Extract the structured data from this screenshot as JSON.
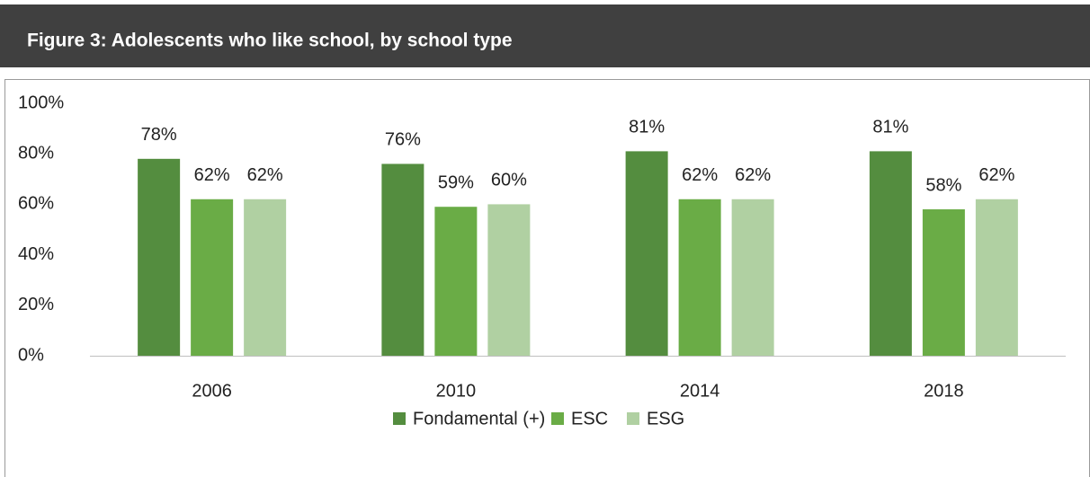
{
  "chart_data": {
    "type": "bar",
    "title": "Figure 3: Adolescents who like school, by school type",
    "categories": [
      "2006",
      "2010",
      "2014",
      "2018"
    ],
    "series": [
      {
        "name": "Fondamental (+)",
        "color": "#548d3f",
        "values": [
          78,
          76,
          81,
          81
        ],
        "value_labels": [
          "78%",
          "76%",
          "81%",
          "81%"
        ]
      },
      {
        "name": "ESC",
        "color": "#6aac46",
        "values": [
          62,
          59,
          62,
          58
        ],
        "value_labels": [
          "62%",
          "59%",
          "62%",
          "58%"
        ]
      },
      {
        "name": "ESG",
        "color": "#b0d0a2",
        "values": [
          62,
          60,
          62,
          62
        ],
        "value_labels": [
          "62%",
          "60%",
          "62%",
          "62%"
        ]
      }
    ],
    "ylim": [
      0,
      100
    ],
    "yticks": [
      {
        "value": 0,
        "label": "0%"
      },
      {
        "value": 20,
        "label": "20%"
      },
      {
        "value": 40,
        "label": "40%"
      },
      {
        "value": 60,
        "label": "60%"
      },
      {
        "value": 80,
        "label": "80%"
      },
      {
        "value": 100,
        "label": "100%"
      }
    ],
    "grid": false,
    "legend": "bottom"
  }
}
